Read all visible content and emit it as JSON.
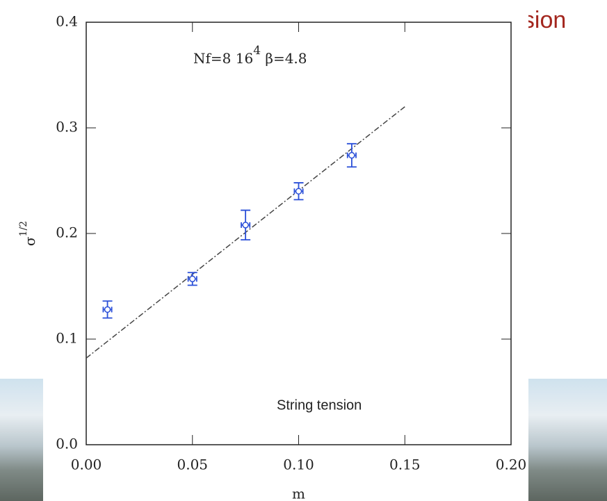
{
  "slide_title_fragment": "nsion",
  "chart_data": {
    "type": "scatter",
    "annotation": [
      "Nf=8  16",
      "4",
      "  β=4.8"
    ],
    "xlabel": "m",
    "ylabel": [
      "σ",
      "1/2"
    ],
    "caption": "String tension",
    "xlim": [
      0,
      0.2
    ],
    "ylim": [
      0,
      0.4
    ],
    "xticks": [
      {
        "value": 0,
        "label": "0.00"
      },
      {
        "value": 0.05,
        "label": "0.05"
      },
      {
        "value": 0.1,
        "label": "0.10"
      },
      {
        "value": 0.15,
        "label": "0.15"
      },
      {
        "value": 0.2,
        "label": "0.20"
      }
    ],
    "yticks": [
      {
        "value": 0,
        "label": "0.0"
      },
      {
        "value": 0.1,
        "label": "0.1"
      },
      {
        "value": 0.2,
        "label": "0.2"
      },
      {
        "value": 0.3,
        "label": "0.3"
      },
      {
        "value": 0.4,
        "label": "0.4"
      }
    ],
    "color": "#2a4fd8",
    "x": [
      0.01,
      0.05,
      0.075,
      0.1,
      0.125
    ],
    "values": [
      0.128,
      0.157,
      0.208,
      0.24,
      0.274
    ],
    "yerr": [
      0.008,
      0.006,
      0.014,
      0.008,
      0.011
    ],
    "xerr": [
      0.002,
      0.002,
      0.002,
      0.002,
      0.002
    ],
    "fit": {
      "x": [
        0,
        0.15
      ],
      "y": [
        0.082,
        0.32
      ],
      "color": "#444444"
    }
  }
}
